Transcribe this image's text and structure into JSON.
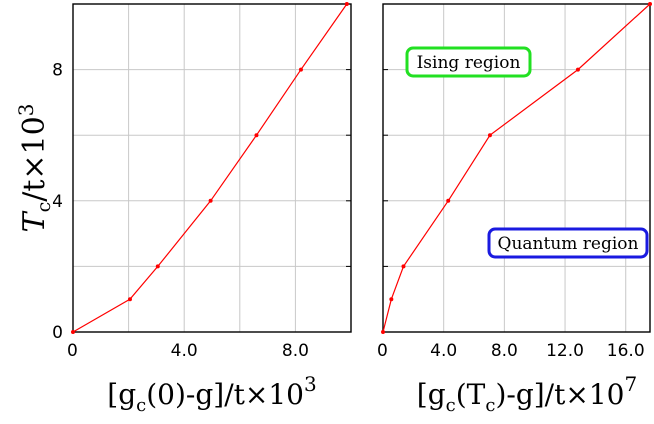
{
  "chart_data": [
    {
      "type": "line",
      "xlim": [
        0,
        10.0
      ],
      "ylim": [
        0,
        10
      ],
      "x_ticks": [
        {
          "v": 0,
          "label": "0"
        },
        {
          "v": 4.0,
          "label": "4.0"
        },
        {
          "v": 8.0,
          "label": "8.0"
        }
      ],
      "y_ticks": [
        {
          "v": 0,
          "label": "0"
        },
        {
          "v": 4,
          "label": "4"
        },
        {
          "v": 8,
          "label": "8"
        }
      ],
      "grid_x": [
        2,
        4,
        6,
        8
      ],
      "grid_y": [
        2,
        4,
        6,
        8
      ],
      "grid": true,
      "series": [
        {
          "color": "#ff0000",
          "x": [
            0,
            2.05,
            3.05,
            4.95,
            6.6,
            8.2,
            9.85
          ],
          "y": [
            0,
            1,
            2,
            4,
            6,
            8,
            10
          ]
        }
      ],
      "ylabel": {
        "main": "T",
        "sub": "c",
        "rest": "/t×10",
        "sup": "3"
      },
      "xlabel": {
        "p1": "[g",
        "sub": "c",
        "p2": "(0)-g]/t×10",
        "sup": "3"
      }
    },
    {
      "type": "line",
      "xlim": [
        0,
        17.6
      ],
      "ylim": [
        0,
        10
      ],
      "x_ticks": [
        {
          "v": 0,
          "label": "0"
        },
        {
          "v": 4.0,
          "label": "4.0"
        },
        {
          "v": 8.0,
          "label": "8.0"
        },
        {
          "v": 12.0,
          "label": "12.0"
        },
        {
          "v": 16.0,
          "label": "16.0"
        }
      ],
      "grid_x": [
        4,
        8,
        12,
        16
      ],
      "grid_y": [
        2,
        4,
        6,
        8
      ],
      "grid": true,
      "series": [
        {
          "color": "#ff0000",
          "x": [
            0,
            0.55,
            1.35,
            4.3,
            7.05,
            12.85,
            17.6
          ],
          "y": [
            0,
            1,
            2,
            4,
            6,
            8,
            10
          ]
        }
      ],
      "xlabel": {
        "p1": "[g",
        "sub": "c",
        "p2": "(T",
        "sub2": "c",
        "p3": ")-g]/t×10",
        "sup": "7"
      },
      "annotations": [
        {
          "text": "Ising region",
          "border": "#22e022"
        },
        {
          "text": "Quantum region",
          "border": "#1a1ae0"
        }
      ]
    }
  ]
}
